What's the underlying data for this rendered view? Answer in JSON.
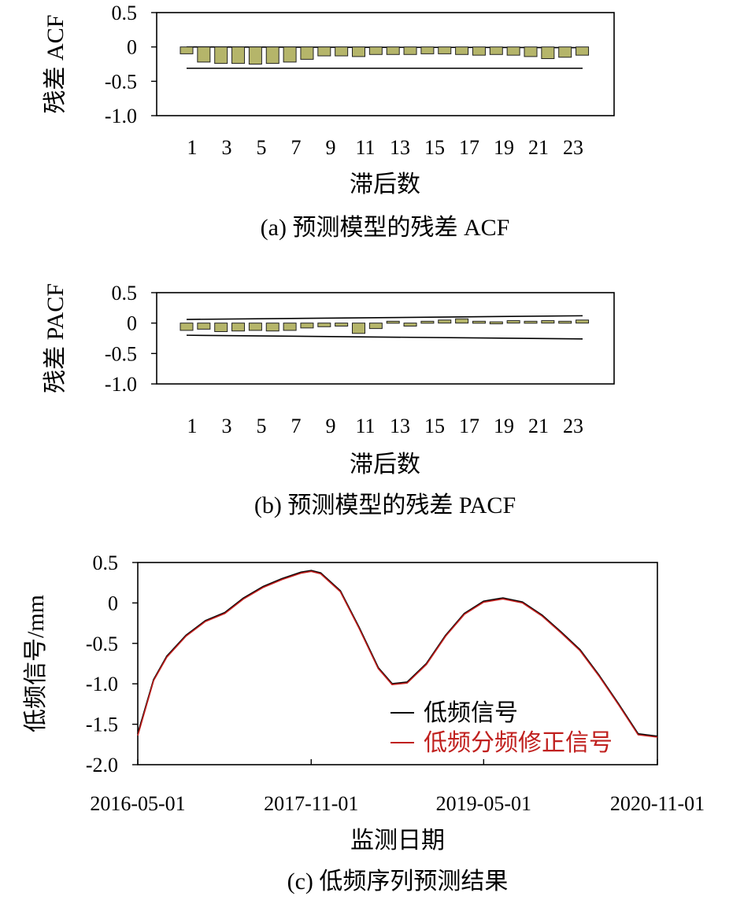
{
  "chart_data": [
    {
      "type": "bar",
      "caption": "(a) 预测模型的残差 ACF",
      "xlabel": "滞后数",
      "ylabel": "残差 ACF",
      "ylim": [
        -1.0,
        0.5
      ],
      "yticks": [
        "0.5",
        "0",
        "-0.5",
        "-1.0"
      ],
      "ytick_values": [
        0.5,
        0,
        -0.5,
        -1.0
      ],
      "xtick_labels": [
        "1",
        "3",
        "5",
        "7",
        "9",
        "11",
        "13",
        "15",
        "17",
        "19",
        "21",
        "23"
      ],
      "lags": [
        0,
        1,
        2,
        3,
        4,
        5,
        6,
        7,
        8,
        9,
        10,
        11,
        12,
        13,
        14,
        15,
        16,
        17,
        18,
        19,
        20,
        21,
        22,
        23
      ],
      "values": [
        -0.1,
        -0.22,
        -0.24,
        -0.24,
        -0.25,
        -0.24,
        -0.22,
        -0.18,
        -0.13,
        -0.13,
        -0.14,
        -0.11,
        -0.11,
        -0.11,
        -0.1,
        -0.1,
        -0.11,
        -0.12,
        -0.11,
        -0.12,
        -0.14,
        -0.17,
        -0.15,
        -0.12
      ],
      "bar_color": "#b5b56a",
      "confidence_upper": [
        0.0,
        -0.01
      ],
      "confidence_lower": [
        -0.31,
        -0.31
      ]
    },
    {
      "type": "bar",
      "caption": "(b) 预测模型的残差 PACF",
      "xlabel": "滞后数",
      "ylabel": "残差 PACF",
      "ylim": [
        -1.0,
        0.5
      ],
      "yticks": [
        "0.5",
        "0",
        "-0.5",
        "-1.0"
      ],
      "ytick_values": [
        0.5,
        0,
        -0.5,
        -1.0
      ],
      "xtick_labels": [
        "1",
        "3",
        "5",
        "7",
        "9",
        "11",
        "13",
        "15",
        "17",
        "19",
        "21",
        "23"
      ],
      "lags": [
        0,
        1,
        2,
        3,
        4,
        5,
        6,
        7,
        8,
        9,
        10,
        11,
        12,
        13,
        14,
        15,
        16,
        17,
        18,
        19,
        20,
        21,
        22,
        23
      ],
      "values": [
        -0.12,
        -0.1,
        -0.14,
        -0.13,
        -0.12,
        -0.13,
        -0.12,
        -0.08,
        -0.06,
        -0.05,
        -0.17,
        -0.09,
        0.03,
        -0.05,
        0.03,
        0.05,
        0.07,
        0.03,
        0.02,
        0.04,
        0.03,
        0.04,
        0.03,
        0.05
      ],
      "bar_color": "#b5b56a",
      "confidence_upper": [
        0.06,
        0.12
      ],
      "confidence_lower": [
        -0.2,
        -0.26
      ]
    },
    {
      "type": "line",
      "caption": "(c) 低频序列预测结果",
      "xlabel": "监测日期",
      "ylabel": "低频信号/mm",
      "ylim": [
        -2.0,
        0.5
      ],
      "yticks": [
        "0.5",
        "0",
        "-0.5",
        "-1.0",
        "-1.5",
        "-2.0"
      ],
      "ytick_values": [
        0.5,
        0,
        -0.5,
        -1.0,
        -1.5,
        -2.0
      ],
      "xticks": [
        "2016-05-01",
        "2017-11-01",
        "2019-05-01",
        "2020-11-01"
      ],
      "legend_position": "lower-right",
      "series": [
        {
          "name": "低频信号",
          "color": "#000000",
          "x": [
            "2016-05-01",
            "2016-06-20",
            "2016-08-01",
            "2016-10-01",
            "2016-12-01",
            "2017-02-01",
            "2017-04-01",
            "2017-06-01",
            "2017-08-01",
            "2017-10-01",
            "2017-11-01",
            "2017-12-01",
            "2018-02-01",
            "2018-04-01",
            "2018-06-01",
            "2018-07-15",
            "2018-09-01",
            "2018-11-01",
            "2019-01-01",
            "2019-03-01",
            "2019-05-01",
            "2019-07-01",
            "2019-09-01",
            "2019-11-01",
            "2020-01-01",
            "2020-03-01",
            "2020-05-01",
            "2020-07-01",
            "2020-09-01",
            "2020-11-01"
          ],
          "y": [
            -1.62,
            -0.95,
            -0.66,
            -0.4,
            -0.22,
            -0.12,
            0.06,
            0.2,
            0.3,
            0.38,
            0.4,
            0.37,
            0.15,
            -0.3,
            -0.8,
            -1.0,
            -0.98,
            -0.75,
            -0.4,
            -0.13,
            0.02,
            0.06,
            0.01,
            -0.15,
            -0.36,
            -0.58,
            -0.9,
            -1.25,
            -1.62,
            -1.65
          ]
        },
        {
          "name": "低频分频修正信号",
          "color": "#c0201e",
          "x": [
            "2016-05-01",
            "2016-06-20",
            "2016-08-01",
            "2016-10-01",
            "2016-12-01",
            "2017-02-01",
            "2017-04-01",
            "2017-06-01",
            "2017-08-01",
            "2017-10-01",
            "2017-11-01",
            "2017-12-01",
            "2018-02-01",
            "2018-04-01",
            "2018-06-01",
            "2018-07-15",
            "2018-09-01",
            "2018-11-01",
            "2019-01-01",
            "2019-03-01",
            "2019-05-01",
            "2019-07-01",
            "2019-09-01",
            "2019-11-01",
            "2020-01-01",
            "2020-03-01",
            "2020-05-01",
            "2020-07-01",
            "2020-09-01",
            "2020-11-01"
          ],
          "y": [
            -1.64,
            -0.96,
            -0.67,
            -0.41,
            -0.23,
            -0.13,
            0.05,
            0.19,
            0.29,
            0.37,
            0.39,
            0.36,
            0.14,
            -0.31,
            -0.81,
            -1.01,
            -0.99,
            -0.76,
            -0.41,
            -0.14,
            0.01,
            0.05,
            0.0,
            -0.16,
            -0.37,
            -0.59,
            -0.91,
            -1.26,
            -1.63,
            -1.66
          ]
        }
      ]
    }
  ]
}
